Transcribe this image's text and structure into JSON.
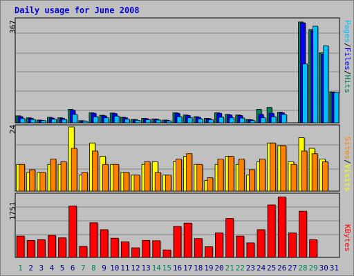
{
  "title": "Daily usage for June 2008",
  "colors": {
    "hits": "#00805c",
    "files": "#0000ff",
    "pages": "#00c0ff",
    "visits": "#ffff00",
    "sites": "#ff8000",
    "kbytes": "#ff0000",
    "weekend_day": "#00805c",
    "weekday": "#000080",
    "title": "#0000cc"
  },
  "chart_data": [
    {
      "type": "bar",
      "name_label": "Pages / Files / Hits",
      "legend": [
        {
          "text": "Pages",
          "color": "#00c0ff"
        },
        {
          "text": "/",
          "color": "#000000"
        },
        {
          "text": "Files",
          "color": "#0000ff"
        },
        {
          "text": "/",
          "color": "#000000"
        },
        {
          "text": "Hits",
          "color": "#00805c"
        }
      ],
      "ymax_label": "367",
      "ylim": [
        0,
        367
      ],
      "series": [
        {
          "name": "Hits",
          "color": "#00805c",
          "values": [
            25,
            18,
            10,
            20,
            18,
            48,
            8,
            36,
            27,
            35,
            20,
            12,
            16,
            14,
            10,
            36,
            28,
            22,
            16,
            36,
            30,
            28,
            12,
            48,
            55,
            38,
            0,
            360,
            333,
            250,
            110
          ]
        },
        {
          "name": "Files",
          "color": "#0000ff",
          "values": [
            22,
            16,
            9,
            17,
            16,
            45,
            7,
            34,
            25,
            33,
            18,
            11,
            15,
            13,
            9,
            34,
            26,
            20,
            15,
            34,
            28,
            26,
            11,
            30,
            34,
            36,
            0,
            357,
            328,
            245,
            108
          ]
        },
        {
          "name": "Pages",
          "color": "#00c0ff",
          "values": [
            15,
            12,
            8,
            13,
            12,
            30,
            6,
            22,
            18,
            24,
            13,
            9,
            11,
            10,
            7,
            22,
            18,
            14,
            11,
            20,
            18,
            17,
            8,
            18,
            22,
            30,
            0,
            210,
            345,
            275,
            108
          ]
        }
      ]
    },
    {
      "type": "bar",
      "name_label": "Sites / Visits",
      "legend": [
        {
          "text": "Sites",
          "color": "#ff8000"
        },
        {
          "text": "/",
          "color": "#000000"
        },
        {
          "text": "Visits",
          "color": "#ffff00"
        }
      ],
      "ymax_label": "24",
      "ylim": [
        0,
        24
      ],
      "series": [
        {
          "name": "Visits",
          "color": "#ffff00",
          "values": [
            10,
            7,
            7,
            10,
            10,
            24,
            6,
            18,
            13,
            10,
            7,
            6,
            10,
            11,
            6,
            11,
            13,
            10,
            4,
            10,
            13,
            10,
            6,
            11,
            18,
            17,
            11,
            20,
            16,
            12,
            0
          ]
        },
        {
          "name": "Sites",
          "color": "#ff8000",
          "values": [
            10,
            8,
            7,
            12,
            11,
            16,
            7,
            15,
            10,
            10,
            7,
            6,
            11,
            7,
            6,
            12,
            14,
            10,
            5,
            12,
            13,
            12,
            8,
            12,
            18,
            17,
            10,
            15,
            14,
            11,
            0
          ]
        }
      ]
    },
    {
      "type": "bar",
      "name_label": "KBytes",
      "legend": [
        {
          "text": "KBytes",
          "color": "#ff0000"
        }
      ],
      "ymax_label": "1751",
      "ylim": [
        0,
        1751
      ],
      "series": [
        {
          "name": "KBytes",
          "color": "#ff0000",
          "values": [
            601,
            480,
            501,
            620,
            551,
            1449,
            310,
            977,
            781,
            541,
            440,
            270,
            480,
            470,
            210,
            871,
            967,
            531,
            300,
            691,
            1097,
            601,
            410,
            781,
            1479,
            1706,
            690,
            1301,
            500,
            0,
            0
          ]
        }
      ]
    }
  ],
  "x_labels": [
    {
      "text": "1",
      "weekend": true
    },
    {
      "text": "2",
      "weekend": false
    },
    {
      "text": "3",
      "weekend": false
    },
    {
      "text": "4",
      "weekend": false
    },
    {
      "text": "5",
      "weekend": false
    },
    {
      "text": "6",
      "weekend": false
    },
    {
      "text": "7",
      "weekend": true
    },
    {
      "text": "8",
      "weekend": true
    },
    {
      "text": "9",
      "weekend": false
    },
    {
      "text": "10",
      "weekend": false
    },
    {
      "text": "11",
      "weekend": false
    },
    {
      "text": "12",
      "weekend": false
    },
    {
      "text": "13",
      "weekend": false
    },
    {
      "text": "14",
      "weekend": true
    },
    {
      "text": "15",
      "weekend": true
    },
    {
      "text": "16",
      "weekend": false
    },
    {
      "text": "17",
      "weekend": false
    },
    {
      "text": "18",
      "weekend": false
    },
    {
      "text": "19",
      "weekend": false
    },
    {
      "text": "20",
      "weekend": false
    },
    {
      "text": "21",
      "weekend": true
    },
    {
      "text": "22",
      "weekend": true
    },
    {
      "text": "23",
      "weekend": false
    },
    {
      "text": "24",
      "weekend": false
    },
    {
      "text": "25",
      "weekend": false
    },
    {
      "text": "26",
      "weekend": false
    },
    {
      "text": "27",
      "weekend": false
    },
    {
      "text": "28",
      "weekend": true
    },
    {
      "text": "29",
      "weekend": true
    },
    {
      "text": "30",
      "weekend": false
    },
    {
      "text": "31",
      "weekend": false
    }
  ]
}
